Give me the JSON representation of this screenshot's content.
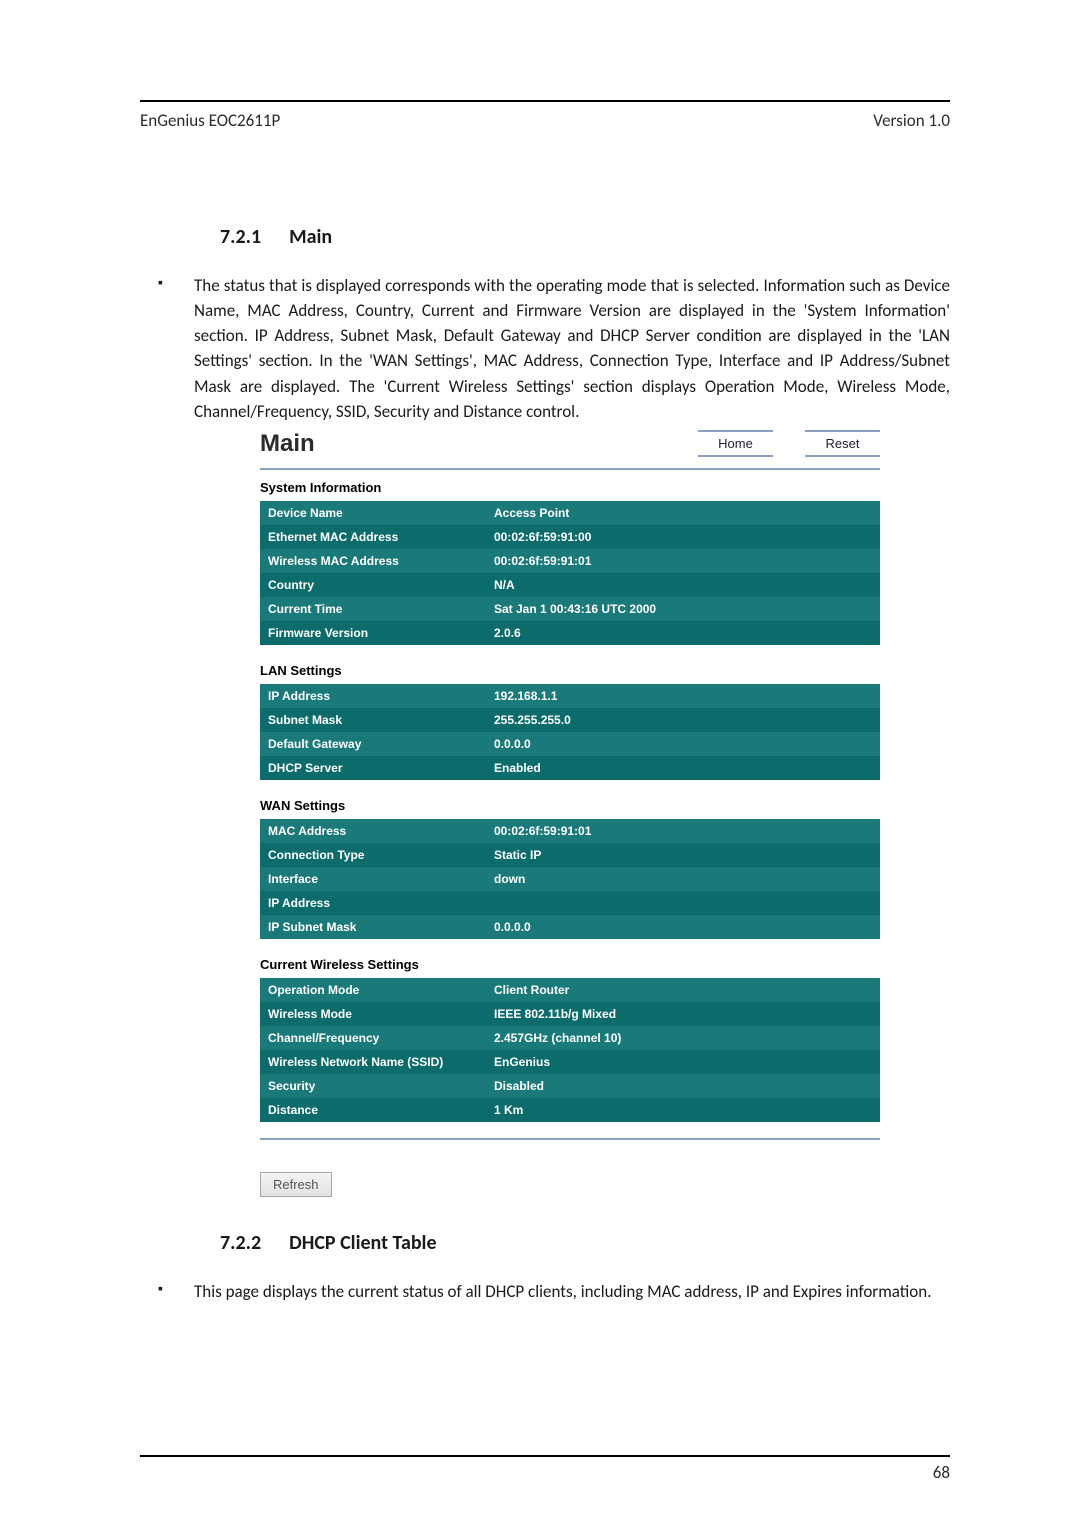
{
  "header": {
    "left": "EnGenius   EOC2611P",
    "right": "Version 1.0"
  },
  "pageNumber": "68",
  "sec1": {
    "num": "7.2.1",
    "title": "Main"
  },
  "para1": "The status that is displayed corresponds with the operating mode that is selected. Information such as Device Name, MAC Address, Country, Current and Firmware Version are displayed in the 'System Information' section. IP Address, Subnet Mask, Default Gateway and DHCP Server condition  are displayed in the 'LAN Settings' section. In the 'WAN Settings', MAC Address, Connection Type, Interface and IP Address/Subnet Mask are displayed. The 'Current Wireless Settings'  section displays Operation Mode, Wireless Mode, Channel/Frequency, SSID, Security and Distance control.",
  "shot": {
    "pageTitle": "Main",
    "buttons": {
      "home": "Home",
      "reset": "Reset",
      "refresh": "Refresh"
    },
    "tealA": "#1a7a7a",
    "tealB": "#0c6c6c",
    "groups": [
      {
        "title": "System Information",
        "rows": [
          {
            "label": "Device Name",
            "value": "Access Point"
          },
          {
            "label": "Ethernet MAC Address",
            "value": "00:02:6f:59:91:00"
          },
          {
            "label": "Wireless MAC Address",
            "value": "00:02:6f:59:91:01"
          },
          {
            "label": "Country",
            "value": "N/A"
          },
          {
            "label": "Current Time",
            "value": "Sat Jan 1 00:43:16 UTC 2000"
          },
          {
            "label": "Firmware Version",
            "value": "2.0.6"
          }
        ]
      },
      {
        "title": "LAN Settings",
        "rows": [
          {
            "label": "IP Address",
            "value": "192.168.1.1"
          },
          {
            "label": "Subnet Mask",
            "value": "255.255.255.0"
          },
          {
            "label": "Default Gateway",
            "value": "0.0.0.0"
          },
          {
            "label": "DHCP Server",
            "value": "Enabled"
          }
        ]
      },
      {
        "title": "WAN Settings",
        "rows": [
          {
            "label": "MAC Address",
            "value": "00:02:6f:59:91:01"
          },
          {
            "label": "Connection Type",
            "value": "Static IP"
          },
          {
            "label": "Interface",
            "value": "down"
          },
          {
            "label": "IP Address",
            "value": ""
          },
          {
            "label": "IP Subnet Mask",
            "value": "0.0.0.0"
          }
        ]
      },
      {
        "title": "Current Wireless Settings",
        "rows": [
          {
            "label": "Operation Mode",
            "value": "Client Router"
          },
          {
            "label": "Wireless Mode",
            "value": "IEEE 802.11b/g Mixed"
          },
          {
            "label": "Channel/Frequency",
            "value": "2.457GHz (channel 10)"
          },
          {
            "label": "Wireless Network Name (SSID)",
            "value": "EnGenius"
          },
          {
            "label": "Security",
            "value": "Disabled"
          },
          {
            "label": "Distance",
            "value": "1 Km"
          }
        ]
      }
    ]
  },
  "sec2": {
    "num": "7.2.2",
    "title": "DHCP Client Table"
  },
  "para2": "This page displays the current status of all DHCP clients, including MAC address, IP and Expires information."
}
